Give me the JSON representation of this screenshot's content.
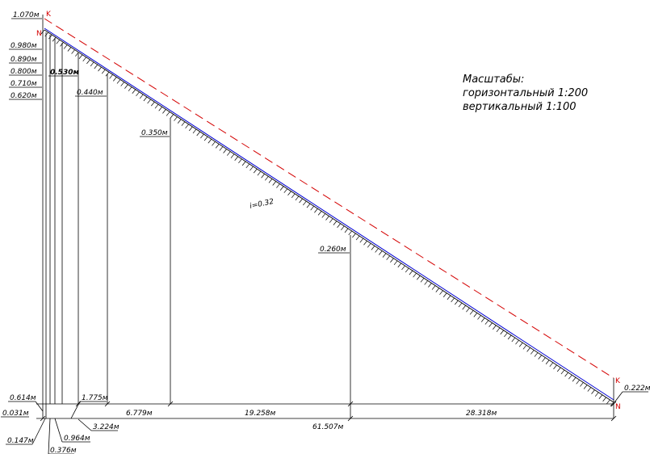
{
  "scale_note": {
    "title": "Масштабы:",
    "horizontal": "горизонтальный  1:200",
    "vertical": "вертикальный     1:100"
  },
  "slope_label": "i=0.32",
  "point_labels": {
    "k_start": "K",
    "n_start": "N",
    "k_end": "K",
    "n_end": "N"
  },
  "depths": [
    "1.070м",
    "0.980м",
    "0.890м",
    "0.800м",
    "0.710м",
    "0.620м",
    "0.530м",
    "0.440м",
    "0.350м",
    "0.260м",
    "0.222м"
  ],
  "bottom_labels": {
    "left_depth": "0.614м",
    "d_0031": "0.031м",
    "d_0147": "0.147м",
    "d_0376": "0.376м",
    "d_0964": "0.964м",
    "d_1775": "1.775м",
    "d_3224": "3.224м",
    "d_6779": "6.779м",
    "d_19258": "19.258м",
    "d_28318": "28.318м",
    "d_61507": "61.507м"
  },
  "colors": {
    "design_line": "#d40000",
    "ground_line": "#0000d4",
    "drawing": "#000000"
  }
}
